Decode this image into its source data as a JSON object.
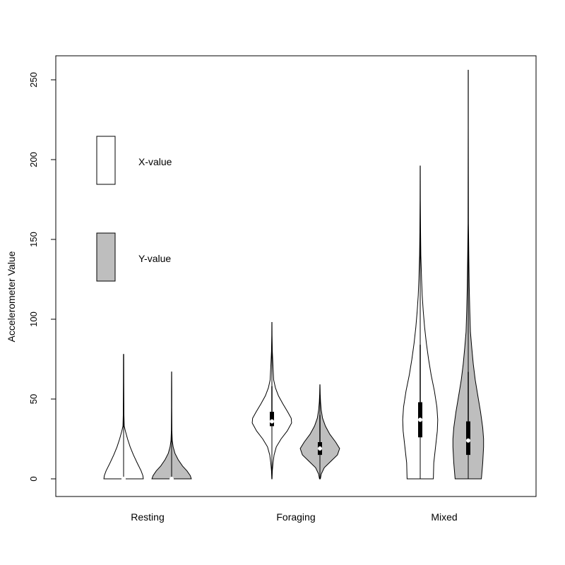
{
  "chart_data": {
    "type": "violin",
    "title": "",
    "xlabel": "",
    "ylabel": "Accelerometer Value",
    "ylim": [
      -10,
      262
    ],
    "yticks": [
      0,
      50,
      100,
      150,
      200,
      250
    ],
    "grid": false,
    "legend_placement": "top-left",
    "categories": [
      "Resting",
      "Foraging",
      "Mixed"
    ],
    "series": [
      {
        "name": "X-value",
        "color": "#ffffff",
        "groups": [
          {
            "category": "Resting",
            "min": 0,
            "q1": 0,
            "median": 0,
            "q3": 0,
            "whisker_high": 0,
            "max": 78,
            "density": [
              [
                0,
                0.9
              ],
              [
                2,
                0.88
              ],
              [
                5,
                0.8
              ],
              [
                10,
                0.62
              ],
              [
                15,
                0.45
              ],
              [
                20,
                0.3
              ],
              [
                25,
                0.18
              ],
              [
                30,
                0.08
              ],
              [
                33,
                0.03
              ],
              [
                40,
                0.015
              ],
              [
                60,
                0.01
              ],
              [
                78,
                0.005
              ]
            ]
          },
          {
            "category": "Foraging",
            "min": 0,
            "q1": 33,
            "median": 36,
            "q3": 42,
            "whisker_high": 58,
            "max": 98,
            "density": [
              [
                0,
                0.005
              ],
              [
                5,
                0.02
              ],
              [
                10,
                0.05
              ],
              [
                15,
                0.1
              ],
              [
                20,
                0.2
              ],
              [
                25,
                0.42
              ],
              [
                30,
                0.7
              ],
              [
                35,
                0.9
              ],
              [
                38,
                0.88
              ],
              [
                42,
                0.72
              ],
              [
                47,
                0.5
              ],
              [
                52,
                0.3
              ],
              [
                57,
                0.16
              ],
              [
                62,
                0.08
              ],
              [
                70,
                0.05
              ],
              [
                80,
                0.02
              ],
              [
                90,
                0.008
              ],
              [
                98,
                0.003
              ]
            ]
          },
          {
            "category": "Mixed",
            "min": 0,
            "q1": 26,
            "median": 37,
            "q3": 48,
            "whisker_high": 84,
            "max": 196,
            "density": [
              [
                0,
                0.6
              ],
              [
                10,
                0.62
              ],
              [
                20,
                0.7
              ],
              [
                30,
                0.78
              ],
              [
                37,
                0.8
              ],
              [
                45,
                0.76
              ],
              [
                55,
                0.65
              ],
              [
                65,
                0.5
              ],
              [
                75,
                0.38
              ],
              [
                85,
                0.28
              ],
              [
                95,
                0.2
              ],
              [
                105,
                0.14
              ],
              [
                115,
                0.09
              ],
              [
                125,
                0.06
              ],
              [
                140,
                0.03
              ],
              [
                155,
                0.015
              ],
              [
                175,
                0.007
              ],
              [
                196,
                0.003
              ]
            ]
          }
        ]
      },
      {
        "name": "Y-value",
        "color": "#bebebe",
        "groups": [
          {
            "category": "Resting",
            "min": 0,
            "q1": 0,
            "median": 0,
            "q3": 0,
            "whisker_high": 0,
            "max": 67,
            "density": [
              [
                0,
                0.9
              ],
              [
                2,
                0.85
              ],
              [
                5,
                0.7
              ],
              [
                8,
                0.5
              ],
              [
                12,
                0.3
              ],
              [
                16,
                0.15
              ],
              [
                20,
                0.07
              ],
              [
                24,
                0.03
              ],
              [
                30,
                0.012
              ],
              [
                45,
                0.008
              ],
              [
                55,
                0.005
              ],
              [
                67,
                0.003
              ]
            ]
          },
          {
            "category": "Foraging",
            "min": 0,
            "q1": 15,
            "median": 19,
            "q3": 23,
            "whisker_high": 40,
            "max": 59,
            "density": [
              [
                0,
                0.02
              ],
              [
                3,
                0.06
              ],
              [
                7,
                0.2
              ],
              [
                11,
                0.5
              ],
              [
                15,
                0.8
              ],
              [
                19,
                0.9
              ],
              [
                23,
                0.72
              ],
              [
                28,
                0.45
              ],
              [
                33,
                0.25
              ],
              [
                38,
                0.12
              ],
              [
                43,
                0.06
              ],
              [
                48,
                0.03
              ],
              [
                53,
                0.012
              ],
              [
                59,
                0.004
              ]
            ]
          },
          {
            "category": "Mixed",
            "min": 0,
            "q1": 15,
            "median": 24,
            "q3": 36,
            "whisker_high": 67,
            "max": 256,
            "density": [
              [
                0,
                0.6
              ],
              [
                10,
                0.66
              ],
              [
                20,
                0.7
              ],
              [
                25,
                0.7
              ],
              [
                32,
                0.66
              ],
              [
                42,
                0.56
              ],
              [
                52,
                0.44
              ],
              [
                62,
                0.32
              ],
              [
                72,
                0.23
              ],
              [
                82,
                0.16
              ],
              [
                92,
                0.1
              ],
              [
                105,
                0.07
              ],
              [
                120,
                0.045
              ],
              [
                140,
                0.025
              ],
              [
                160,
                0.01
              ],
              [
                190,
                0.005
              ],
              [
                220,
                0.003
              ],
              [
                256,
                0.002
              ]
            ]
          }
        ]
      }
    ]
  }
}
